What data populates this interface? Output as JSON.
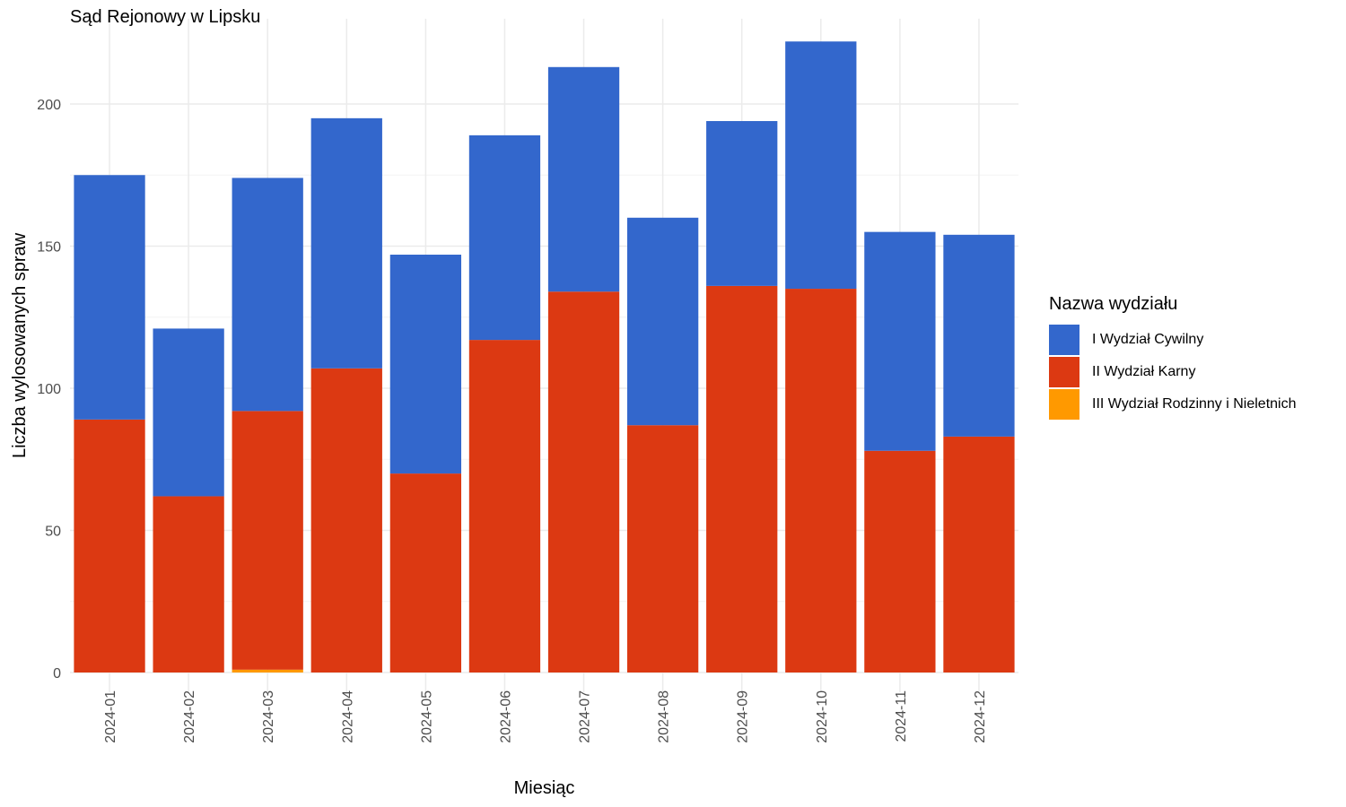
{
  "chart_data": {
    "type": "bar",
    "stacked": true,
    "title": "Sąd Rejonowy w Lipsku",
    "xlabel": "Miesiąc",
    "ylabel": "Liczba wylosowanych spraw",
    "ylim": [
      0,
      230
    ],
    "yticks": [
      0,
      50,
      100,
      150,
      200
    ],
    "grid": true,
    "legend_position": "right",
    "legend_title": "Nazwa wydziału",
    "categories": [
      "2024-01",
      "2024-02",
      "2024-03",
      "2024-04",
      "2024-05",
      "2024-06",
      "2024-07",
      "2024-08",
      "2024-09",
      "2024-10",
      "2024-11",
      "2024-12"
    ],
    "series": [
      {
        "name": "I Wydział Cywilny",
        "color": "#3367CC",
        "values": [
          86,
          59,
          82,
          88,
          77,
          72,
          79,
          73,
          58,
          87,
          77,
          71
        ]
      },
      {
        "name": "II Wydział Karny",
        "color": "#DC3912",
        "values": [
          89,
          62,
          91,
          107,
          70,
          117,
          134,
          87,
          136,
          135,
          78,
          83
        ]
      },
      {
        "name": "III Wydział Rodzinny i Nieletnich",
        "color": "#FF9900",
        "values": [
          0,
          0,
          1,
          0,
          0,
          0,
          0,
          0,
          0,
          0,
          0,
          0
        ]
      }
    ]
  }
}
